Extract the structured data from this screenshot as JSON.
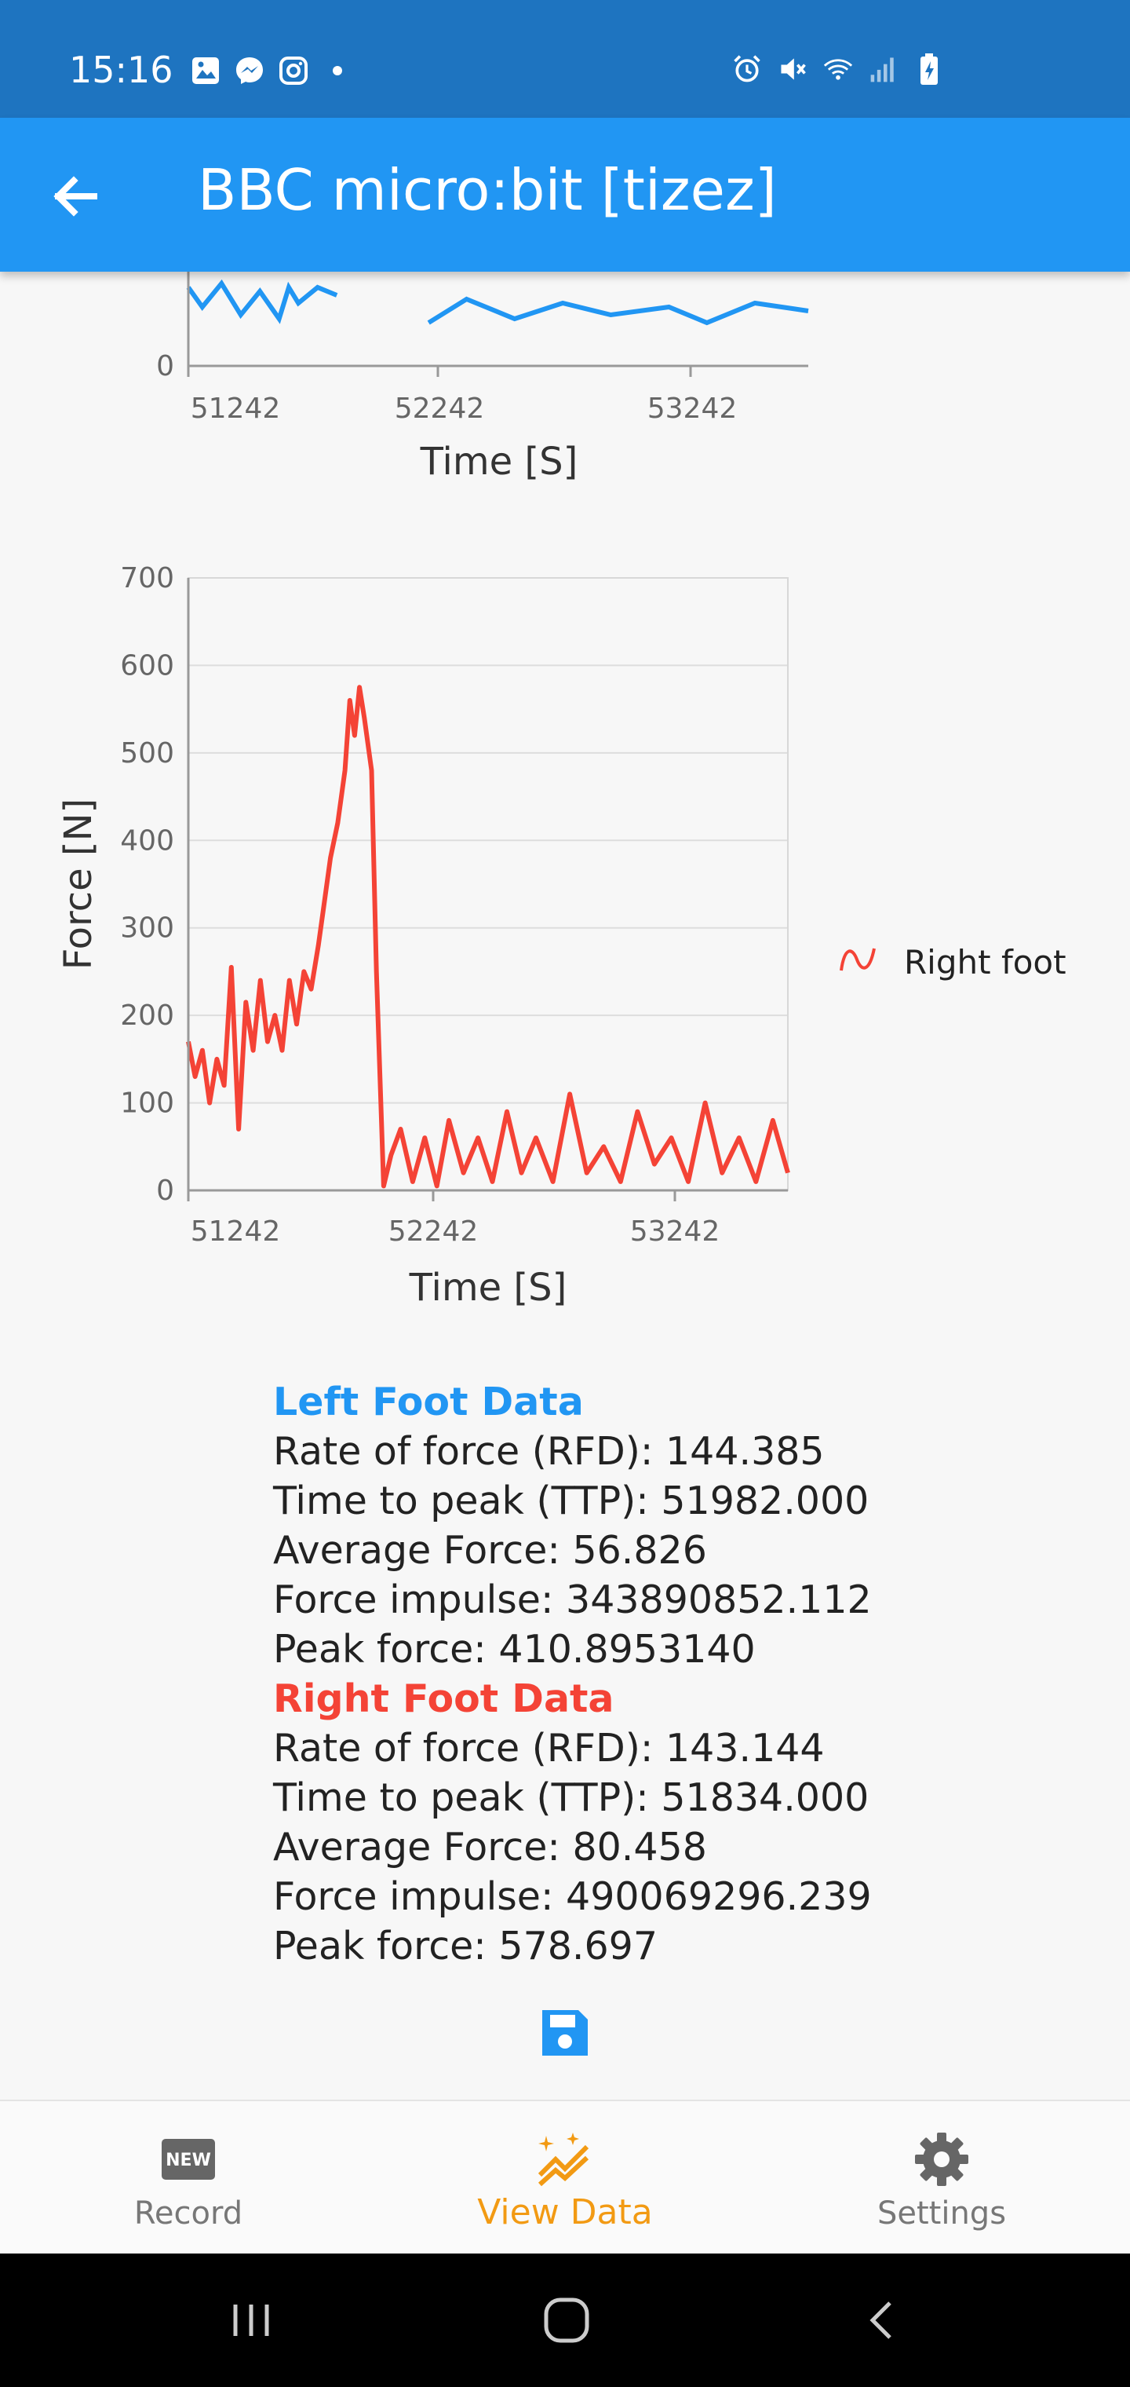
{
  "status_bar": {
    "time": "15:16",
    "left_icons": [
      "gallery-icon",
      "messenger-icon",
      "instagram-icon",
      "dot-icon"
    ],
    "right_icons": [
      "alarm-icon",
      "mute-icon",
      "wifi-icon",
      "signal-icon",
      "battery-icon"
    ]
  },
  "app_bar": {
    "title": "BBC micro:bit [tizez]",
    "back_icon": "arrow-left-icon"
  },
  "charts": {
    "left": {
      "x_label": "Time [S]",
      "x_ticks": [
        "51242",
        "52242",
        "53242"
      ],
      "y_ticks_visible": [
        "0"
      ],
      "color": "#2196f3"
    },
    "right": {
      "x_label": "Time [S]",
      "y_label": "Force [N]",
      "x_ticks": [
        "51242",
        "52242",
        "53242"
      ],
      "y_ticks": [
        "0",
        "100",
        "200",
        "300",
        "400",
        "500",
        "600",
        "700"
      ],
      "legend": "Right foot",
      "color": "#f44336"
    }
  },
  "chart_data": [
    {
      "type": "line",
      "title": "",
      "xlabel": "Time [S]",
      "ylabel": "",
      "xlim": [
        51242,
        53822
      ],
      "series": [
        {
          "name": "",
          "x": [
            51242,
            51300,
            51380,
            51460,
            51540,
            51620,
            51660,
            51700,
            51780,
            51860,
            52100,
            52242,
            52400,
            52600,
            52800,
            53000,
            53242,
            53400,
            53600,
            53822
          ],
          "y": [
            200,
            150,
            210,
            130,
            190,
            120,
            200,
            160,
            200,
            180,
            null,
            110,
            170,
            120,
            160,
            130,
            150,
            110,
            160,
            140
          ]
        }
      ]
    },
    {
      "type": "line",
      "title": "",
      "xlabel": "Time [S]",
      "ylabel": "Force [N]",
      "xlim": [
        51242,
        53722
      ],
      "ylim": [
        0,
        700
      ],
      "legend": "top-right",
      "series": [
        {
          "name": "Right foot",
          "x": [
            51242,
            51270,
            51300,
            51330,
            51360,
            51390,
            51420,
            51450,
            51480,
            51510,
            51540,
            51570,
            51600,
            51630,
            51660,
            51690,
            51720,
            51750,
            51780,
            51800,
            51830,
            51860,
            51890,
            51910,
            51930,
            51950,
            51970,
            52000,
            52020,
            52050,
            52080,
            52120,
            52170,
            52220,
            52270,
            52320,
            52380,
            52440,
            52500,
            52560,
            52620,
            52680,
            52750,
            52820,
            52890,
            52960,
            53030,
            53100,
            53170,
            53240,
            53310,
            53380,
            53450,
            53520,
            53590,
            53660,
            53722
          ],
          "y": [
            170,
            130,
            160,
            100,
            150,
            120,
            255,
            70,
            215,
            160,
            240,
            170,
            200,
            160,
            240,
            190,
            250,
            230,
            280,
            320,
            380,
            420,
            480,
            560,
            520,
            575,
            540,
            480,
            250,
            5,
            40,
            70,
            10,
            60,
            5,
            80,
            20,
            60,
            10,
            90,
            20,
            60,
            10,
            110,
            20,
            50,
            10,
            90,
            30,
            60,
            10,
            100,
            20,
            60,
            10,
            80,
            20
          ]
        }
      ]
    }
  ],
  "left_foot": {
    "title": "Left Foot Data",
    "rfd": "Rate of force (RFD): 144.385",
    "ttp": "Time to peak (TTP): 51982.000",
    "avg": "Average Force: 56.826",
    "impulse": "Force impulse: 343890852.112",
    "peak": "Peak force: 410.8953140"
  },
  "right_foot": {
    "title": "Right Foot Data",
    "rfd": "Rate of force (RFD): 143.144",
    "ttp": "Time to peak (TTP): 51834.000",
    "avg": "Average Force: 80.458",
    "impulse": "Force impulse: 490069296.239",
    "peak": "Peak force: 578.697"
  },
  "save_icon": "save-icon",
  "bottom_nav": [
    {
      "label": "Record",
      "icon": "new-icon",
      "active": false
    },
    {
      "label": "View Data",
      "icon": "chart-sparkle-icon",
      "active": true
    },
    {
      "label": "Settings",
      "icon": "gear-icon",
      "active": false
    }
  ],
  "colors": {
    "status_bar": "#1e74c0",
    "app_bar": "#2196f3",
    "left": "#2196f3",
    "right": "#f44336",
    "active_nav": "#f29a13"
  }
}
